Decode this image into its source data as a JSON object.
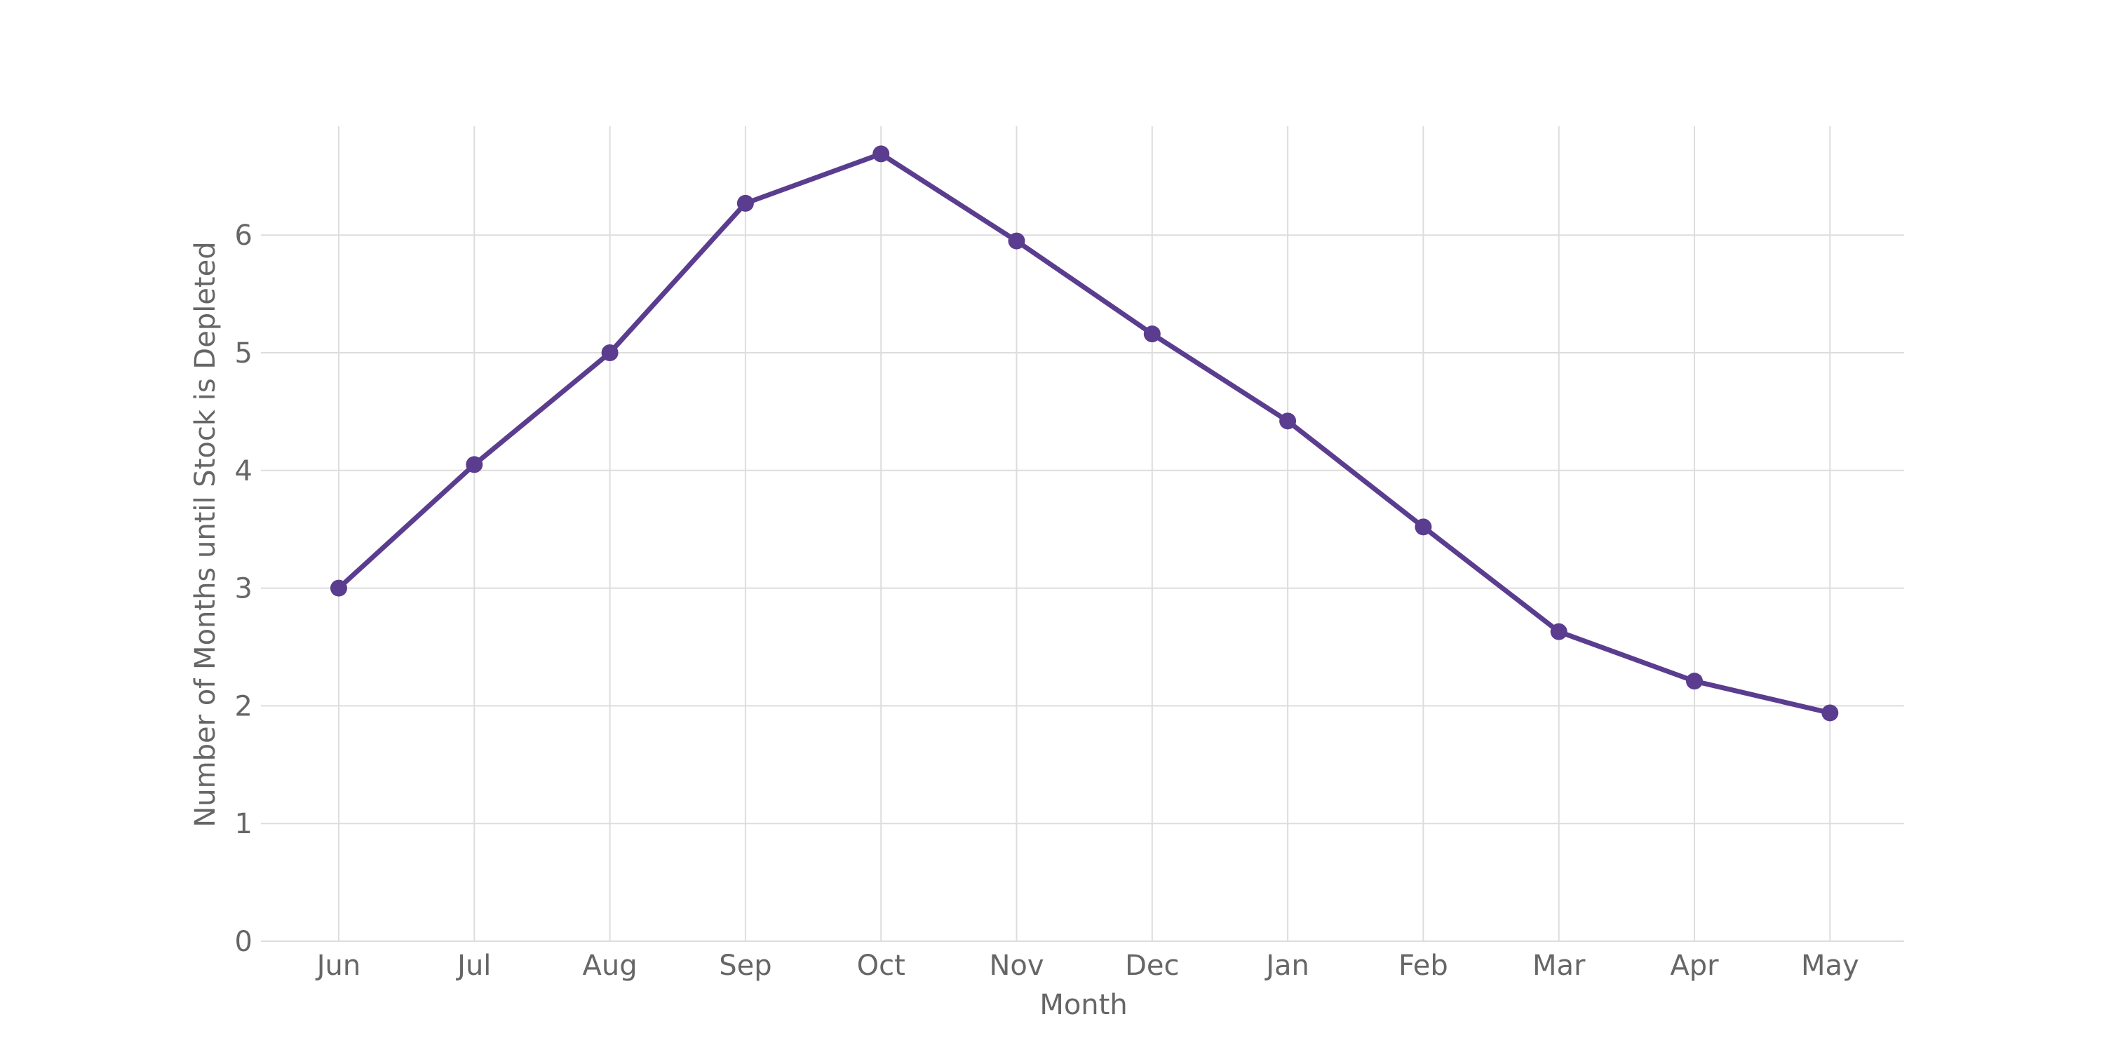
{
  "chart_data": {
    "type": "line",
    "title": "",
    "xlabel": "Month",
    "ylabel": "Number of Months until Stock is Depleted",
    "categories": [
      "Jun",
      "Jul",
      "Aug",
      "Sep",
      "Oct",
      "Nov",
      "Dec",
      "Jan",
      "Feb",
      "Mar",
      "Apr",
      "May"
    ],
    "series": [
      {
        "values": [
          3.0,
          4.05,
          5.0,
          6.27,
          6.69,
          5.95,
          5.16,
          4.42,
          3.52,
          2.63,
          2.21,
          1.94
        ],
        "color": "#5b3d8f"
      }
    ],
    "ylim": [
      0,
      6.9
    ],
    "yticks": [
      0,
      1,
      2,
      3,
      4,
      5,
      6
    ],
    "grid": true,
    "legend": "none"
  }
}
